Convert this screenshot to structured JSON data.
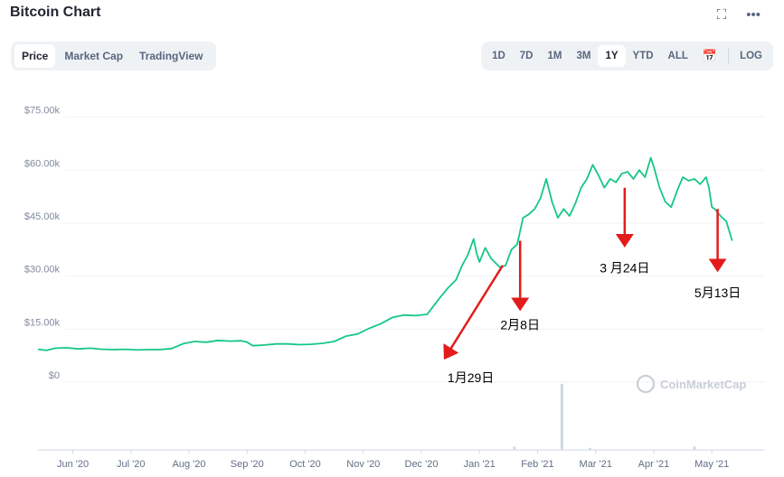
{
  "header": {
    "title": "Bitcoin Chart",
    "fullscreen_icon": "expand-icon",
    "more_icon": "more-horizontal-icon",
    "fullscreen_glyph": "⛶",
    "more_glyph": "•••"
  },
  "tabs": [
    {
      "label": "Price",
      "active": true
    },
    {
      "label": "Market Cap",
      "active": false
    },
    {
      "label": "TradingView",
      "active": false
    }
  ],
  "ranges": [
    {
      "label": "1D",
      "active": false
    },
    {
      "label": "7D",
      "active": false
    },
    {
      "label": "1M",
      "active": false
    },
    {
      "label": "3M",
      "active": false
    },
    {
      "label": "1Y",
      "active": true
    },
    {
      "label": "YTD",
      "active": false
    },
    {
      "label": "ALL",
      "active": false
    }
  ],
  "calendar_icon": "calendar-icon",
  "calendar_glyph": "📅",
  "log_label": "LOG",
  "watermark": "CoinMarketCap",
  "chart_data": {
    "type": "line",
    "title": "",
    "xlabel": "",
    "ylabel": "",
    "line_color": "#16c784",
    "annotation_color": "#e31b1b",
    "ylim": [
      0,
      80000
    ],
    "yticks": [
      {
        "value": 0,
        "label": "$0"
      },
      {
        "value": 15000,
        "label": "$15.00k"
      },
      {
        "value": 30000,
        "label": "$30.00k"
      },
      {
        "value": 45000,
        "label": "$45.00k"
      },
      {
        "value": 60000,
        "label": "$60.00k"
      },
      {
        "value": 75000,
        "label": "$75.00k"
      }
    ],
    "xlim": [
      0,
      12.5
    ],
    "xticks": [
      {
        "value": 0.6,
        "label": "Jun '20"
      },
      {
        "value": 1.6,
        "label": "Jul '20"
      },
      {
        "value": 2.6,
        "label": "Aug '20"
      },
      {
        "value": 3.6,
        "label": "Sep '20"
      },
      {
        "value": 4.6,
        "label": "Oct '20"
      },
      {
        "value": 5.6,
        "label": "Nov '20"
      },
      {
        "value": 6.6,
        "label": "Dec '20"
      },
      {
        "value": 7.6,
        "label": "Jan '21"
      },
      {
        "value": 8.6,
        "label": "Feb '21"
      },
      {
        "value": 9.6,
        "label": "Mar '21"
      },
      {
        "value": 10.6,
        "label": "Apr '21"
      },
      {
        "value": 11.6,
        "label": "May '21"
      }
    ],
    "series": [
      {
        "points": [
          [
            0.0,
            9300
          ],
          [
            0.15,
            9000
          ],
          [
            0.3,
            9600
          ],
          [
            0.5,
            9700
          ],
          [
            0.7,
            9400
          ],
          [
            0.9,
            9600
          ],
          [
            1.1,
            9300
          ],
          [
            1.3,
            9200
          ],
          [
            1.5,
            9300
          ],
          [
            1.7,
            9100
          ],
          [
            1.9,
            9200
          ],
          [
            2.1,
            9200
          ],
          [
            2.3,
            9500
          ],
          [
            2.5,
            10900
          ],
          [
            2.7,
            11500
          ],
          [
            2.9,
            11300
          ],
          [
            3.1,
            11800
          ],
          [
            3.3,
            11600
          ],
          [
            3.5,
            11700
          ],
          [
            3.6,
            11300
          ],
          [
            3.7,
            10300
          ],
          [
            3.9,
            10500
          ],
          [
            4.1,
            10800
          ],
          [
            4.3,
            10800
          ],
          [
            4.5,
            10600
          ],
          [
            4.7,
            10700
          ],
          [
            4.9,
            11000
          ],
          [
            5.1,
            11500
          ],
          [
            5.3,
            13000
          ],
          [
            5.5,
            13600
          ],
          [
            5.7,
            15200
          ],
          [
            5.9,
            16500
          ],
          [
            6.1,
            18300
          ],
          [
            6.3,
            19000
          ],
          [
            6.5,
            18800
          ],
          [
            6.7,
            19200
          ],
          [
            6.9,
            23500
          ],
          [
            7.05,
            26500
          ],
          [
            7.2,
            29000
          ],
          [
            7.3,
            33000
          ],
          [
            7.4,
            36000
          ],
          [
            7.5,
            40500
          ],
          [
            7.55,
            36500
          ],
          [
            7.6,
            34000
          ],
          [
            7.7,
            38000
          ],
          [
            7.8,
            35000
          ],
          [
            7.95,
            32500
          ],
          [
            8.05,
            33000
          ],
          [
            8.15,
            37500
          ],
          [
            8.25,
            39000
          ],
          [
            8.35,
            46500
          ],
          [
            8.45,
            47500
          ],
          [
            8.55,
            49000
          ],
          [
            8.65,
            52000
          ],
          [
            8.75,
            57500
          ],
          [
            8.85,
            51000
          ],
          [
            8.95,
            46500
          ],
          [
            9.05,
            49000
          ],
          [
            9.15,
            47000
          ],
          [
            9.25,
            50500
          ],
          [
            9.35,
            55000
          ],
          [
            9.45,
            57500
          ],
          [
            9.55,
            61500
          ],
          [
            9.65,
            58500
          ],
          [
            9.75,
            55000
          ],
          [
            9.85,
            57500
          ],
          [
            9.95,
            56500
          ],
          [
            10.05,
            59000
          ],
          [
            10.15,
            59500
          ],
          [
            10.25,
            57500
          ],
          [
            10.35,
            60000
          ],
          [
            10.45,
            58000
          ],
          [
            10.55,
            63500
          ],
          [
            10.6,
            61000
          ],
          [
            10.7,
            55000
          ],
          [
            10.8,
            51000
          ],
          [
            10.9,
            49500
          ],
          [
            11.0,
            54000
          ],
          [
            11.1,
            58000
          ],
          [
            11.2,
            57000
          ],
          [
            11.3,
            57500
          ],
          [
            11.4,
            56000
          ],
          [
            11.5,
            58000
          ],
          [
            11.55,
            55000
          ],
          [
            11.6,
            49500
          ],
          [
            11.65,
            49000
          ],
          [
            11.75,
            47000
          ],
          [
            11.85,
            45500
          ],
          [
            11.95,
            40000
          ]
        ]
      }
    ],
    "volume": [
      {
        "x": 8.2,
        "v": 0.05
      },
      {
        "x": 9.02,
        "v": 1.0
      },
      {
        "x": 9.5,
        "v": 0.03
      },
      {
        "x": 11.3,
        "v": 0.05
      }
    ],
    "annotations": [
      {
        "text": "1月29日",
        "x_from": 8.0,
        "v_from": 33000,
        "x_to": 7.05,
        "v_to": 8000,
        "label_x": 7.45,
        "label_v": 0
      },
      {
        "text": "2月8日",
        "x_from": 8.3,
        "v_from": 40000,
        "x_to": 8.3,
        "v_to": 22000,
        "label_x": 8.3,
        "label_v": 15000
      },
      {
        "text": "3 月24日",
        "x_from": 10.1,
        "v_from": 55000,
        "x_to": 10.1,
        "v_to": 40000,
        "label_x": 10.1,
        "label_v": 31000
      },
      {
        "text": "5月13日",
        "x_from": 11.7,
        "v_from": 49000,
        "x_to": 11.7,
        "v_to": 33000,
        "label_x": 11.7,
        "label_v": 24000
      }
    ]
  }
}
